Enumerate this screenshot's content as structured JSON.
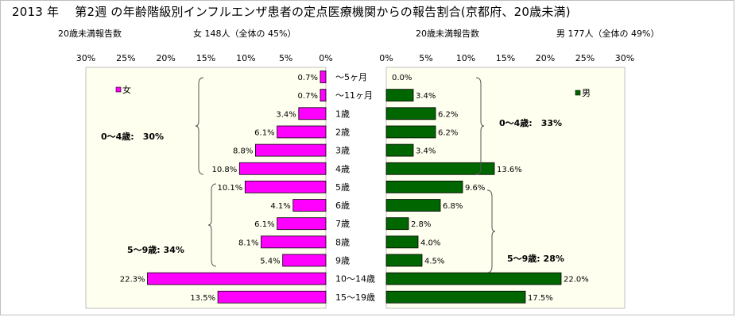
{
  "title": "2013 年　 第2週 の年齢階級別インフルエンザ患者の定点医療機関からの報告割合(京都府、20歳未満)",
  "left_subtitle_main": "20歳未満報告数",
  "left_subtitle_count": "女 148人（全体の 45%）",
  "right_subtitle_main": "20歳未満報告数",
  "right_subtitle_count": "男 177人（全体の 49%）",
  "colors": {
    "female": "#ff00ff",
    "male": "#006600",
    "plot_bg": "#fffff0",
    "plot_border": "#c0c0c0"
  },
  "chart_data": [
    {
      "type": "bar",
      "orientation": "horizontal",
      "direction": "right-to-left",
      "categories": [
        "〜5ヶ月",
        "〜11ヶ月",
        "1歳",
        "2歳",
        "3歳",
        "4歳",
        "5歳",
        "6歳",
        "7歳",
        "8歳",
        "9歳",
        "10〜14歳",
        "15〜19歳"
      ],
      "series": [
        {
          "name": "女",
          "values": [
            0.7,
            0.7,
            3.4,
            6.1,
            8.8,
            10.8,
            10.1,
            4.1,
            6.1,
            8.1,
            5.4,
            22.3,
            13.5
          ]
        }
      ],
      "data_labels": [
        "0.7%",
        "0.7%",
        "3.4%",
        "6.1%",
        "8.8%",
        "10.8%",
        "10.1%",
        "4.1%",
        "6.1%",
        "8.1%",
        "5.4%",
        "22.3%",
        "13.5%"
      ],
      "xlim": [
        0,
        30
      ],
      "tick_labels": [
        "30%",
        "25%",
        "20%",
        "15%",
        "10%",
        "5%",
        "0%"
      ],
      "tick_values": [
        30,
        25,
        20,
        15,
        10,
        5,
        0
      ],
      "legend": "女",
      "legend_placement": "top-left",
      "annotations": [
        "0〜4歳:　30%",
        "5〜9歳:  34%"
      ],
      "grid": false
    },
    {
      "type": "bar",
      "orientation": "horizontal",
      "direction": "left-to-right",
      "categories": [
        "〜5ヶ月",
        "〜11ヶ月",
        "1歳",
        "2歳",
        "3歳",
        "4歳",
        "5歳",
        "6歳",
        "7歳",
        "8歳",
        "9歳",
        "10〜14歳",
        "15〜19歳"
      ],
      "series": [
        {
          "name": "男",
          "values": [
            0.0,
            3.4,
            6.2,
            6.2,
            3.4,
            13.6,
            9.6,
            6.8,
            2.8,
            4.0,
            4.5,
            22.0,
            17.5
          ]
        }
      ],
      "data_labels": [
        "0.0%",
        "3.4%",
        "6.2%",
        "6.2%",
        "3.4%",
        "13.6%",
        "9.6%",
        "6.8%",
        "2.8%",
        "4.0%",
        "4.5%",
        "22.0%",
        "17.5%"
      ],
      "xlim": [
        0,
        30
      ],
      "tick_labels": [
        "0%",
        "5%",
        "10%",
        "15%",
        "20%",
        "25%",
        "30%"
      ],
      "tick_values": [
        0,
        5,
        10,
        15,
        20,
        25,
        30
      ],
      "legend": "男",
      "legend_placement": "top-right",
      "annotations": [
        "0〜4歳:　33%",
        "5〜9歳:  28%"
      ],
      "grid": false
    }
  ]
}
